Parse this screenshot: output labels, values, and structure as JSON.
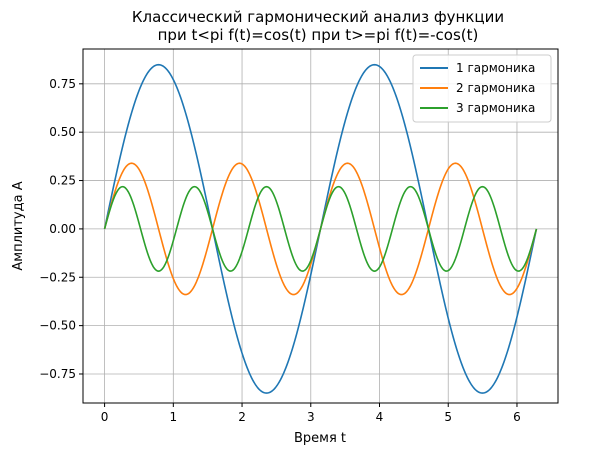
{
  "chart_data": {
    "type": "line",
    "title_lines": [
      "Классический гармонический анализ функции",
      "при t<pi  f(t)=cos(t)  при t>=pi  f(t)=-cos(t)"
    ],
    "xlabel": "Время t",
    "ylabel": "Амплитуда A",
    "xlim": [
      -0.314,
      6.597
    ],
    "ylim": [
      -0.9,
      0.93
    ],
    "xticks": [
      0,
      1,
      2,
      3,
      4,
      5,
      6
    ],
    "xtick_labels": [
      "0",
      "1",
      "2",
      "3",
      "4",
      "5",
      "6"
    ],
    "yticks": [
      -0.75,
      -0.5,
      -0.25,
      0.0,
      0.25,
      0.5,
      0.75
    ],
    "ytick_labels": [
      "−0.75",
      "−0.50",
      "−0.25",
      "0.00",
      "0.25",
      "0.50",
      "0.75"
    ],
    "grid": true,
    "legend_position": "top-right",
    "x_range": [
      0,
      6.2832
    ],
    "series": [
      {
        "name": "1 гармоника",
        "color": "#1f77b4",
        "amplitude": 0.8488,
        "frequency": 2
      },
      {
        "name": "2 гармоника",
        "color": "#ff7f0e",
        "amplitude": 0.3395,
        "frequency": 4
      },
      {
        "name": "3 гармоника",
        "color": "#2ca02c",
        "amplitude": 0.2183,
        "frequency": 6
      }
    ]
  }
}
